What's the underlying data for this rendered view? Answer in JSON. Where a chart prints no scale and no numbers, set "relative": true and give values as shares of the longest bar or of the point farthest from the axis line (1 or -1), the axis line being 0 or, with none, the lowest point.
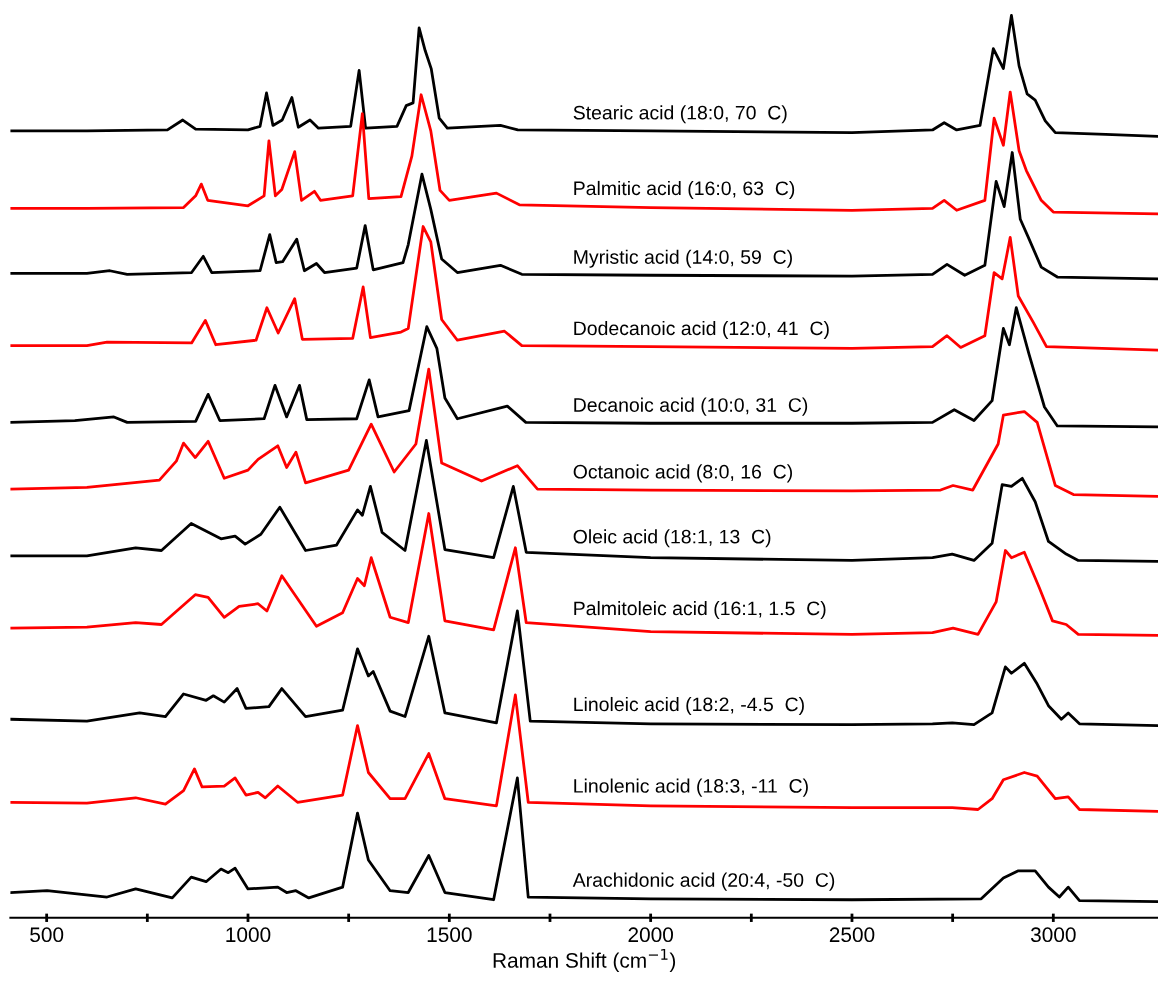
{
  "chart_data": {
    "type": "line",
    "relative": true,
    "xlabel": "Raman Shift (cm$^{−1}$)",
    "xlim": [
      410,
      3260
    ],
    "xticks": [
      500,
      {
        "value": 750,
        "label": null
      },
      1000,
      {
        "value": 1250,
        "label": null
      },
      1500,
      {
        "value": 1750,
        "label": null
      },
      2000,
      {
        "value": 2250,
        "label": null
      },
      2500,
      {
        "value": 2750,
        "label": null
      },
      3000
    ],
    "tick_labels": "x",
    "series": [
      {
        "name": "Stearic acid (18:0, 70  C)",
        "color": "#000000",
        "x": [
          410,
          600,
          800,
          838,
          870,
          1000,
          1030,
          1046,
          1062,
          1085,
          1109,
          1125,
          1154,
          1175,
          1255,
          1276,
          1292,
          1370,
          1393,
          1410,
          1425,
          1440,
          1455,
          1475,
          1495,
          1627,
          1670,
          2000,
          2500,
          2700,
          2729,
          2760,
          2818,
          2851,
          2876,
          2896,
          2915,
          2935,
          2955,
          2980,
          3005,
          3130,
          3260
        ],
        "values": [
          0.872,
          0.872,
          0.873,
          0.884,
          0.874,
          0.873,
          0.877,
          0.914,
          0.878,
          0.884,
          0.909,
          0.876,
          0.884,
          0.875,
          0.877,
          0.939,
          0.875,
          0.877,
          0.9,
          0.903,
          0.986,
          0.961,
          0.941,
          0.886,
          0.875,
          0.878,
          0.873,
          0.872,
          0.87,
          0.873,
          0.881,
          0.873,
          0.878,
          0.963,
          0.941,
          1.0,
          0.944,
          0.913,
          0.906,
          0.883,
          0.87,
          0.868,
          0.866
        ]
      },
      {
        "name": "Palmitic acid (16:0, 63  C)",
        "color": "#ff0000",
        "x": [
          410,
          600,
          840,
          870,
          884,
          900,
          1000,
          1040,
          1052,
          1068,
          1084,
          1116,
          1133,
          1165,
          1180,
          1260,
          1284,
          1300,
          1380,
          1407,
          1430,
          1454,
          1477,
          1500,
          1617,
          1674,
          2000,
          2500,
          2700,
          2729,
          2760,
          2830,
          2853,
          2876,
          2893,
          2915,
          2933,
          2970,
          3000,
          3260
        ],
        "values": [
          0.786,
          0.786,
          0.787,
          0.8,
          0.813,
          0.795,
          0.789,
          0.8,
          0.861,
          0.8,
          0.807,
          0.849,
          0.795,
          0.805,
          0.795,
          0.8,
          0.891,
          0.797,
          0.799,
          0.844,
          0.912,
          0.872,
          0.806,
          0.795,
          0.803,
          0.79,
          0.787,
          0.784,
          0.786,
          0.795,
          0.784,
          0.795,
          0.886,
          0.856,
          0.915,
          0.85,
          0.828,
          0.795,
          0.782,
          0.78
        ]
      },
      {
        "name": "Myristic acid (14:0, 59  C)",
        "color": "#000000",
        "x": [
          410,
          600,
          657,
          700,
          860,
          889,
          910,
          1030,
          1054,
          1070,
          1086,
          1121,
          1140,
          1170,
          1190,
          1270,
          1291,
          1311,
          1385,
          1398,
          1432,
          1454,
          1481,
          1520,
          1627,
          1680,
          2000,
          2500,
          2700,
          2736,
          2780,
          2830,
          2858,
          2878,
          2898,
          2918,
          2938,
          2970,
          3010,
          3260
        ],
        "values": [
          0.714,
          0.714,
          0.717,
          0.713,
          0.715,
          0.733,
          0.715,
          0.717,
          0.757,
          0.726,
          0.727,
          0.752,
          0.717,
          0.725,
          0.715,
          0.72,
          0.767,
          0.718,
          0.726,
          0.746,
          0.824,
          0.785,
          0.73,
          0.715,
          0.723,
          0.713,
          0.712,
          0.711,
          0.713,
          0.724,
          0.712,
          0.723,
          0.816,
          0.788,
          0.848,
          0.774,
          0.754,
          0.721,
          0.71,
          0.708
        ]
      },
      {
        "name": "Dodecanoic acid (12:0, 41  C)",
        "color": "#ff0000",
        "x": [
          410,
          600,
          650,
          860,
          894,
          920,
          1020,
          1047,
          1075,
          1116,
          1135,
          1260,
          1286,
          1304,
          1380,
          1398,
          1435,
          1454,
          1481,
          1520,
          1637,
          1680,
          2000,
          2500,
          2700,
          2736,
          2770,
          2830,
          2853,
          2873,
          2893,
          2913,
          2950,
          2983,
          3260
        ],
        "values": [
          0.634,
          0.634,
          0.638,
          0.637,
          0.662,
          0.635,
          0.64,
          0.676,
          0.648,
          0.686,
          0.641,
          0.642,
          0.699,
          0.643,
          0.649,
          0.653,
          0.766,
          0.749,
          0.663,
          0.64,
          0.65,
          0.634,
          0.633,
          0.631,
          0.633,
          0.645,
          0.632,
          0.645,
          0.715,
          0.708,
          0.754,
          0.689,
          0.66,
          0.633,
          0.629
        ]
      },
      {
        "name": "Decanoic acid (10:0, 31  C)",
        "color": "#000000",
        "x": [
          410,
          570,
          667,
          700,
          870,
          901,
          930,
          1040,
          1067,
          1096,
          1128,
          1146,
          1270,
          1301,
          1323,
          1400,
          1417,
          1444,
          1469,
          1489,
          1520,
          1644,
          1690,
          2000,
          2500,
          2700,
          2754,
          2803,
          2848,
          2876,
          2891,
          2908,
          2940,
          2978,
          3010,
          3260
        ],
        "values": [
          0.549,
          0.551,
          0.555,
          0.549,
          0.55,
          0.58,
          0.551,
          0.553,
          0.59,
          0.555,
          0.59,
          0.552,
          0.553,
          0.596,
          0.555,
          0.562,
          0.598,
          0.655,
          0.631,
          0.576,
          0.553,
          0.567,
          0.549,
          0.548,
          0.548,
          0.549,
          0.563,
          0.551,
          0.573,
          0.653,
          0.635,
          0.676,
          0.624,
          0.566,
          0.545,
          0.544
        ]
      },
      {
        "name": "Octanoic acid (8:0, 16  C)",
        "color": "#ff0000",
        "x": [
          410,
          600,
          780,
          822,
          840,
          869,
          901,
          941,
          1000,
          1025,
          1074,
          1096,
          1119,
          1143,
          1250,
          1306,
          1363,
          1417,
          1449,
          1481,
          1580,
          1669,
          1719,
          2000,
          2500,
          2720,
          2751,
          2800,
          2863,
          2876,
          2928,
          2960,
          3005,
          3050,
          3260
        ],
        "values": [
          0.475,
          0.477,
          0.485,
          0.506,
          0.526,
          0.51,
          0.528,
          0.487,
          0.496,
          0.508,
          0.523,
          0.499,
          0.516,
          0.482,
          0.496,
          0.547,
          0.494,
          0.525,
          0.608,
          0.504,
          0.484,
          0.501,
          0.475,
          0.474,
          0.473,
          0.474,
          0.479,
          0.474,
          0.525,
          0.557,
          0.561,
          0.549,
          0.479,
          0.469,
          0.467
        ]
      },
      {
        "name": "Oleic acid (18:1, 13  C)",
        "color": "#000000",
        "x": [
          410,
          600,
          721,
          785,
          859,
          933,
          968,
          993,
          1032,
          1079,
          1143,
          1220,
          1272,
          1284,
          1304,
          1333,
          1390,
          1443,
          1489,
          1610,
          1659,
          1691,
          2000,
          2500,
          2700,
          2749,
          2803,
          2848,
          2873,
          2896,
          2923,
          2955,
          2988,
          3032,
          3062,
          3260
        ],
        "values": [
          0.401,
          0.401,
          0.41,
          0.407,
          0.437,
          0.42,
          0.423,
          0.414,
          0.425,
          0.455,
          0.407,
          0.413,
          0.452,
          0.446,
          0.478,
          0.427,
          0.407,
          0.529,
          0.408,
          0.399,
          0.478,
          0.405,
          0.399,
          0.396,
          0.399,
          0.403,
          0.396,
          0.415,
          0.48,
          0.478,
          0.487,
          0.461,
          0.417,
          0.403,
          0.396,
          0.395
        ]
      },
      {
        "name": "Palmitoleic acid (16:1, 1.5  C)",
        "color": "#ff0000",
        "x": [
          410,
          600,
          721,
          785,
          869,
          901,
          941,
          978,
          1025,
          1047,
          1084,
          1170,
          1235,
          1272,
          1289,
          1306,
          1353,
          1398,
          1449,
          1489,
          1610,
          1664,
          1691,
          2000,
          2500,
          2700,
          2751,
          2813,
          2858,
          2881,
          2896,
          2928,
          2965,
          2998,
          3032,
          3062,
          3260
        ],
        "values": [
          0.321,
          0.322,
          0.327,
          0.325,
          0.358,
          0.355,
          0.333,
          0.345,
          0.348,
          0.34,
          0.379,
          0.323,
          0.338,
          0.376,
          0.368,
          0.399,
          0.333,
          0.327,
          0.448,
          0.329,
          0.319,
          0.41,
          0.327,
          0.317,
          0.314,
          0.316,
          0.321,
          0.314,
          0.35,
          0.407,
          0.399,
          0.405,
          0.366,
          0.329,
          0.325,
          0.314,
          0.313
        ]
      },
      {
        "name": "Linoleic acid (18:2, -4.5  C)",
        "color": "#000000",
        "x": [
          410,
          600,
          731,
          795,
          840,
          896,
          914,
          941,
          973,
          995,
          1052,
          1084,
          1143,
          1235,
          1272,
          1299,
          1311,
          1353,
          1390,
          1449,
          1489,
          1617,
          1669,
          1701,
          2000,
          2500,
          2700,
          2749,
          2803,
          2848,
          2881,
          2896,
          2928,
          2960,
          2988,
          3020,
          3037,
          3065,
          3260
        ],
        "values": [
          0.22,
          0.218,
          0.227,
          0.223,
          0.248,
          0.241,
          0.246,
          0.239,
          0.254,
          0.232,
          0.234,
          0.254,
          0.223,
          0.23,
          0.298,
          0.268,
          0.273,
          0.229,
          0.223,
          0.312,
          0.227,
          0.216,
          0.34,
          0.218,
          0.215,
          0.214,
          0.215,
          0.216,
          0.214,
          0.227,
          0.278,
          0.271,
          0.282,
          0.259,
          0.235,
          0.22,
          0.227,
          0.215,
          0.213
        ]
      },
      {
        "name": "Linolenic acid (18:3, -11  C)",
        "color": "#ff0000",
        "x": [
          410,
          600,
          721,
          795,
          840,
          867,
          886,
          941,
          968,
          995,
          1025,
          1043,
          1074,
          1123,
          1235,
          1272,
          1299,
          1353,
          1390,
          1449,
          1489,
          1617,
          1664,
          1696,
          2000,
          2500,
          2700,
          2749,
          2813,
          2848,
          2876,
          2928,
          2960,
          3005,
          3037,
          3065,
          3260
        ],
        "values": [
          0.128,
          0.127,
          0.133,
          0.126,
          0.141,
          0.165,
          0.145,
          0.146,
          0.155,
          0.136,
          0.139,
          0.133,
          0.146,
          0.128,
          0.136,
          0.213,
          0.161,
          0.132,
          0.132,
          0.182,
          0.132,
          0.124,
          0.247,
          0.128,
          0.124,
          0.122,
          0.122,
          0.122,
          0.12,
          0.132,
          0.153,
          0.161,
          0.157,
          0.132,
          0.134,
          0.12,
          0.118
        ]
      },
      {
        "name": "Arachidonic acid (20:4, -50  C)",
        "color": "#000000",
        "x": [
          410,
          501,
          650,
          721,
          812,
          859,
          896,
          933,
          951,
          968,
          1000,
          1074,
          1096,
          1119,
          1151,
          1235,
          1272,
          1299,
          1353,
          1398,
          1449,
          1489,
          1610,
          1669,
          1696,
          2000,
          2500,
          2821,
          2876,
          2913,
          2955,
          2988,
          3015,
          3037,
          3065,
          3260
        ],
        "values": [
          0.028,
          0.03,
          0.023,
          0.032,
          0.022,
          0.045,
          0.04,
          0.054,
          0.05,
          0.055,
          0.032,
          0.034,
          0.028,
          0.03,
          0.022,
          0.034,
          0.116,
          0.064,
          0.03,
          0.028,
          0.069,
          0.028,
          0.02,
          0.155,
          0.023,
          0.021,
          0.02,
          0.021,
          0.044,
          0.052,
          0.052,
          0.034,
          0.023,
          0.034,
          0.019,
          0.018
        ]
      }
    ]
  }
}
